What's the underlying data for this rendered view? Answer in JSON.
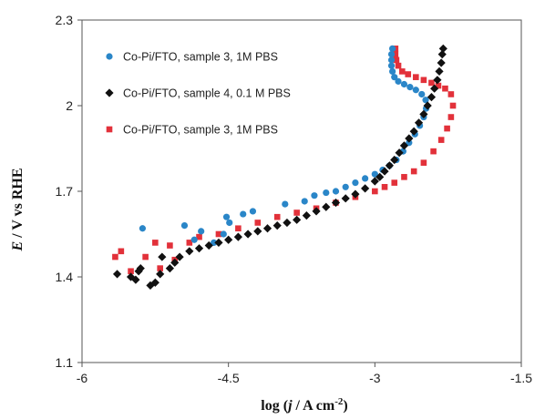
{
  "chart_data": {
    "type": "scatter",
    "xlabel": {
      "prefix": "log (",
      "var": "j",
      "rest": " / A cm",
      "sup": "-2",
      "suffix": ")"
    },
    "ylabel": {
      "var": "E",
      "rest": " / V vs RHE"
    },
    "xlim": [
      -6,
      -1.5
    ],
    "ylim": [
      1.1,
      2.3
    ],
    "xticks": [
      -6,
      -4.5,
      -3,
      -1.5
    ],
    "xtick_labels": [
      "-6",
      "-4.5",
      "-3",
      "-1.5"
    ],
    "yticks": [
      1.1,
      1.4,
      1.7,
      2.0,
      2.3
    ],
    "ytick_labels": [
      "1.1",
      "1.4",
      "1.7",
      "2",
      "2.3"
    ],
    "grid": false,
    "legend_position": "top-left",
    "series": [
      {
        "name": "Co-Pi/FTO, sample 3, 1M PBS",
        "color": "#2a86c8",
        "marker": "circle",
        "points": [
          [
            -5.38,
            1.57
          ],
          [
            -4.95,
            1.58
          ],
          [
            -4.78,
            1.56
          ],
          [
            -4.52,
            1.61
          ],
          [
            -4.49,
            1.59
          ],
          [
            -4.35,
            1.62
          ],
          [
            -4.25,
            1.63
          ],
          [
            -4.85,
            1.53
          ],
          [
            -4.65,
            1.52
          ],
          [
            -4.55,
            1.55
          ],
          [
            -3.92,
            1.655
          ],
          [
            -3.72,
            1.665
          ],
          [
            -3.62,
            1.685
          ],
          [
            -3.5,
            1.695
          ],
          [
            -3.4,
            1.7
          ],
          [
            -3.3,
            1.715
          ],
          [
            -3.2,
            1.73
          ],
          [
            -3.1,
            1.745
          ],
          [
            -3.0,
            1.76
          ],
          [
            -2.92,
            1.775
          ],
          [
            -2.85,
            1.79
          ],
          [
            -2.78,
            1.81
          ],
          [
            -2.71,
            1.84
          ],
          [
            -2.65,
            1.87
          ],
          [
            -2.59,
            1.9
          ],
          [
            -2.54,
            1.93
          ],
          [
            -2.5,
            1.96
          ],
          [
            -2.475,
            1.99
          ],
          [
            -2.48,
            2.02
          ],
          [
            -2.52,
            2.04
          ],
          [
            -2.58,
            2.055
          ],
          [
            -2.64,
            2.065
          ],
          [
            -2.7,
            2.075
          ],
          [
            -2.76,
            2.085
          ],
          [
            -2.8,
            2.1
          ],
          [
            -2.82,
            2.12
          ],
          [
            -2.83,
            2.14
          ],
          [
            -2.83,
            2.16
          ],
          [
            -2.83,
            2.18
          ],
          [
            -2.82,
            2.2
          ]
        ]
      },
      {
        "name": "Co-Pi/FTO, sample 4, 0.1 M PBS",
        "color": "#111111",
        "marker": "diamond",
        "points": [
          [
            -5.64,
            1.41
          ],
          [
            -5.5,
            1.4
          ],
          [
            -5.45,
            1.39
          ],
          [
            -5.42,
            1.42
          ],
          [
            -5.4,
            1.43
          ],
          [
            -5.3,
            1.37
          ],
          [
            -5.25,
            1.38
          ],
          [
            -5.2,
            1.41
          ],
          [
            -5.18,
            1.47
          ],
          [
            -5.1,
            1.43
          ],
          [
            -5.05,
            1.45
          ],
          [
            -5.0,
            1.47
          ],
          [
            -4.9,
            1.49
          ],
          [
            -4.8,
            1.5
          ],
          [
            -4.7,
            1.51
          ],
          [
            -4.6,
            1.52
          ],
          [
            -4.5,
            1.53
          ],
          [
            -4.4,
            1.54
          ],
          [
            -4.3,
            1.55
          ],
          [
            -4.2,
            1.56
          ],
          [
            -4.1,
            1.57
          ],
          [
            -4.0,
            1.58
          ],
          [
            -3.9,
            1.59
          ],
          [
            -3.8,
            1.6
          ],
          [
            -3.7,
            1.615
          ],
          [
            -3.6,
            1.63
          ],
          [
            -3.5,
            1.645
          ],
          [
            -3.4,
            1.66
          ],
          [
            -3.3,
            1.675
          ],
          [
            -3.2,
            1.69
          ],
          [
            -3.1,
            1.71
          ],
          [
            -3.0,
            1.735
          ],
          [
            -2.95,
            1.75
          ],
          [
            -2.9,
            1.77
          ],
          [
            -2.85,
            1.79
          ],
          [
            -2.8,
            1.81
          ],
          [
            -2.75,
            1.835
          ],
          [
            -2.7,
            1.86
          ],
          [
            -2.65,
            1.885
          ],
          [
            -2.6,
            1.91
          ],
          [
            -2.55,
            1.94
          ],
          [
            -2.5,
            1.97
          ],
          [
            -2.46,
            2.0
          ],
          [
            -2.42,
            2.03
          ],
          [
            -2.39,
            2.06
          ],
          [
            -2.36,
            2.09
          ],
          [
            -2.34,
            2.12
          ],
          [
            -2.32,
            2.15
          ],
          [
            -2.31,
            2.18
          ],
          [
            -2.3,
            2.2
          ]
        ]
      },
      {
        "name": "Co-Pi/FTO, sample 3, 1M PBS",
        "color": "#e2313a",
        "marker": "square",
        "points": [
          [
            -5.66,
            1.47
          ],
          [
            -5.6,
            1.49
          ],
          [
            -5.5,
            1.42
          ],
          [
            -5.35,
            1.47
          ],
          [
            -5.25,
            1.52
          ],
          [
            -5.2,
            1.43
          ],
          [
            -5.1,
            1.51
          ],
          [
            -5.05,
            1.46
          ],
          [
            -4.9,
            1.52
          ],
          [
            -4.8,
            1.54
          ],
          [
            -4.6,
            1.55
          ],
          [
            -4.4,
            1.57
          ],
          [
            -4.2,
            1.59
          ],
          [
            -4.0,
            1.61
          ],
          [
            -3.8,
            1.625
          ],
          [
            -3.6,
            1.64
          ],
          [
            -3.4,
            1.66
          ],
          [
            -3.2,
            1.68
          ],
          [
            -3.0,
            1.7
          ],
          [
            -2.9,
            1.715
          ],
          [
            -2.8,
            1.73
          ],
          [
            -2.7,
            1.75
          ],
          [
            -2.6,
            1.77
          ],
          [
            -2.5,
            1.8
          ],
          [
            -2.4,
            1.84
          ],
          [
            -2.32,
            1.88
          ],
          [
            -2.26,
            1.92
          ],
          [
            -2.22,
            1.96
          ],
          [
            -2.2,
            2.0
          ],
          [
            -2.22,
            2.04
          ],
          [
            -2.28,
            2.06
          ],
          [
            -2.35,
            2.07
          ],
          [
            -2.42,
            2.08
          ],
          [
            -2.5,
            2.09
          ],
          [
            -2.58,
            2.1
          ],
          [
            -2.66,
            2.11
          ],
          [
            -2.72,
            2.12
          ],
          [
            -2.76,
            2.14
          ],
          [
            -2.78,
            2.16
          ],
          [
            -2.79,
            2.18
          ],
          [
            -2.79,
            2.2
          ]
        ]
      }
    ]
  }
}
